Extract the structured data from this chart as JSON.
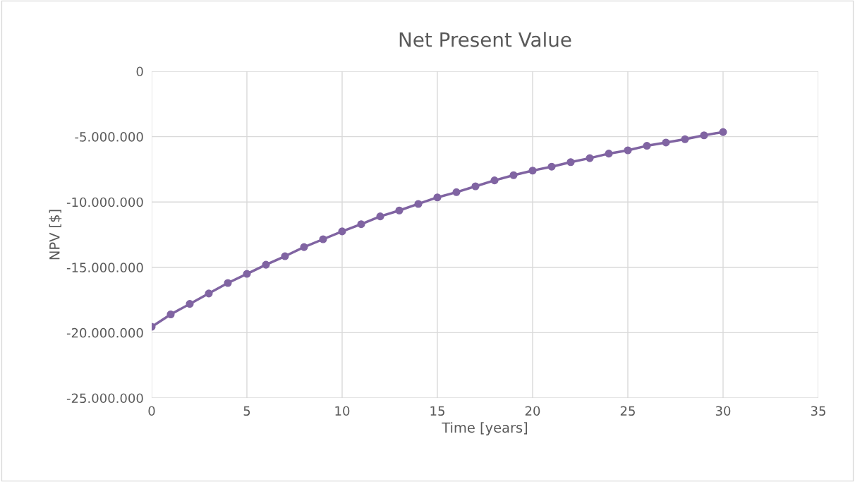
{
  "chart_data": {
    "type": "line",
    "title": "Net Present Value",
    "xlabel": "Time [years]",
    "ylabel": "NPV [$]",
    "x": [
      0,
      1,
      2,
      3,
      4,
      5,
      6,
      7,
      8,
      9,
      10,
      11,
      12,
      13,
      14,
      15,
      16,
      17,
      18,
      19,
      20,
      21,
      22,
      23,
      24,
      25,
      26,
      27,
      28,
      29,
      30
    ],
    "series": [
      {
        "color": "#8064a2",
        "values": [
          -19550000,
          -18600000,
          -17800000,
          -17000000,
          -16200000,
          -15500000,
          -14800000,
          -14150000,
          -13450000,
          -12850000,
          -12250000,
          -11700000,
          -11100000,
          -10650000,
          -10150000,
          -9650000,
          -9250000,
          -8800000,
          -8350000,
          -7950000,
          -7600000,
          -7300000,
          -6950000,
          -6650000,
          -6300000,
          -6050000,
          -5700000,
          -5450000,
          -5200000,
          -4900000,
          -4650000
        ]
      }
    ],
    "xlim": [
      0,
      35
    ],
    "xticks": [
      0,
      5,
      10,
      15,
      20,
      25,
      30,
      35
    ],
    "ylim": [
      -25000000,
      0
    ],
    "yticks": [
      {
        "value": -25000000,
        "label": "-25.000.000"
      },
      {
        "value": -20000000,
        "label": "-20.000.000"
      },
      {
        "value": -15000000,
        "label": "-15.000.000"
      },
      {
        "value": -10000000,
        "label": "-10.000.000"
      },
      {
        "value": -5000000,
        "label": "-5.000.000"
      },
      {
        "value": 0,
        "label": "0"
      }
    ],
    "grid": true,
    "marker": "circle",
    "line_style": "solid",
    "legend": false
  }
}
